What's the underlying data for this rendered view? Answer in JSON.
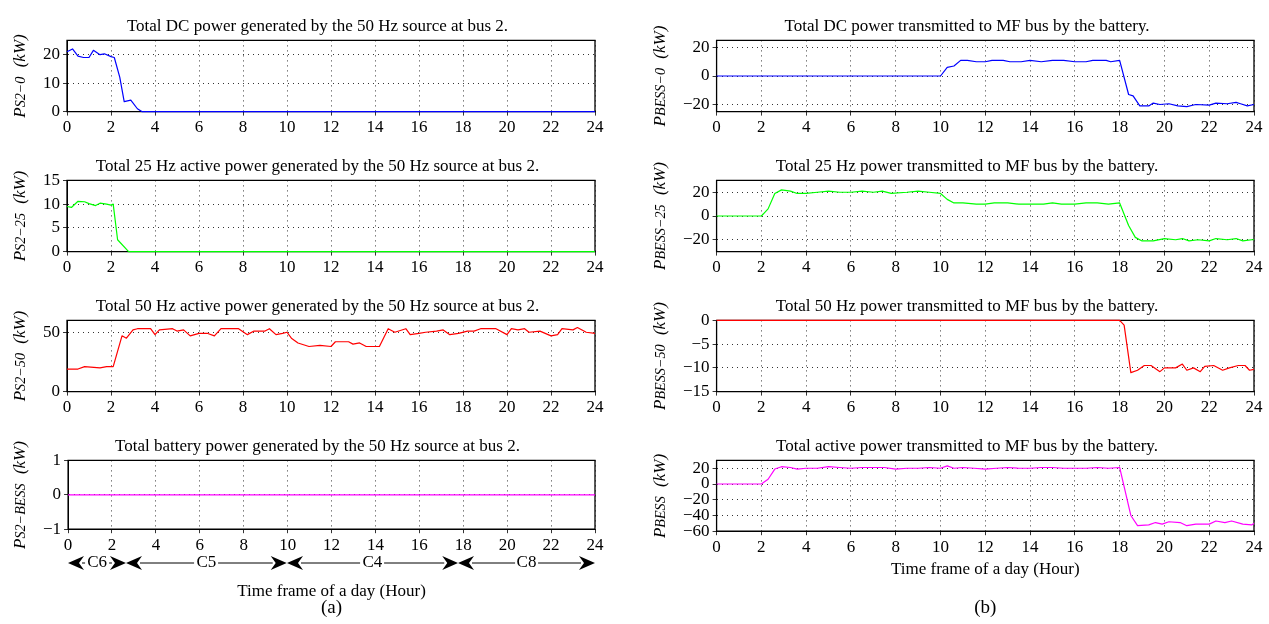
{
  "chart_data": [
    {
      "type": "line",
      "title": "Total DC power generated by the 50 Hz source at bus 2.",
      "ylabel": "P$_{S2−0}$ (kW)",
      "color": "#0000ff",
      "marker": "none",
      "grid": true,
      "xlim": [
        0,
        24
      ],
      "xticks": [
        0,
        2,
        4,
        6,
        8,
        10,
        12,
        14,
        16,
        18,
        20,
        22,
        24
      ],
      "ylim": [
        0,
        25
      ],
      "yticks": [
        0,
        10,
        20
      ],
      "x": [
        0,
        0.25,
        0.5,
        0.75,
        1.0,
        1.2,
        1.5,
        1.7,
        2.0,
        2.15,
        2.4,
        2.6,
        2.9,
        3.2,
        3.4,
        24
      ],
      "values": [
        21,
        22,
        19.5,
        19,
        19,
        21.5,
        20,
        20.3,
        19.3,
        19,
        12,
        3.5,
        4,
        1,
        0,
        0
      ]
    },
    {
      "type": "line",
      "title": "Total 25 Hz active power generated by the 50 Hz source at bus 2.",
      "ylabel": "P$_{S2−25}$ (kW)",
      "color": "#00ff00",
      "marker": "none",
      "grid": true,
      "xlim": [
        0,
        24
      ],
      "xticks": [
        0,
        2,
        4,
        6,
        8,
        10,
        12,
        14,
        16,
        18,
        20,
        22,
        24
      ],
      "ylim": [
        0,
        15
      ],
      "yticks": [
        0,
        5,
        10,
        15
      ],
      "x": [
        0,
        0.2,
        0.5,
        0.8,
        1.0,
        1.3,
        1.5,
        1.8,
        2.0,
        2.1,
        2.3,
        2.8,
        24
      ],
      "values": [
        9.5,
        9.3,
        10.6,
        10.5,
        10.1,
        9.7,
        10.2,
        10,
        9.8,
        10,
        2.5,
        0,
        0
      ]
    },
    {
      "type": "line",
      "title": "Total 50 Hz active power generated by the 50 Hz source at bus 2.",
      "ylabel": "P$_{S2−50}$ (kW)",
      "color": "#ff0000",
      "marker": "none",
      "grid": true,
      "xlim": [
        0,
        24
      ],
      "xticks": [
        0,
        2,
        4,
        6,
        8,
        10,
        12,
        14,
        16,
        18,
        20,
        22,
        24
      ],
      "ylim": [
        0,
        60
      ],
      "yticks": [
        0,
        50
      ],
      "x": [
        0,
        0.5,
        0.8,
        1.5,
        1.8,
        2.1,
        2.5,
        2.7,
        3.0,
        3.2,
        3.8,
        4.0,
        4.2,
        4.8,
        5.0,
        5.3,
        5.6,
        6.0,
        6.4,
        6.7,
        7.0,
        7.8,
        8.2,
        8.5,
        9.0,
        9.2,
        9.5,
        9.8,
        10.0,
        10.2,
        10.5,
        11.0,
        11.5,
        12.0,
        12.2,
        12.8,
        13.0,
        13.3,
        13.6,
        14.2,
        14.6,
        14.9,
        15.4,
        15.6,
        16.0,
        16.3,
        16.8,
        17.1,
        17.4,
        17.8,
        18.2,
        18.5,
        18.8,
        19.5,
        20.0,
        20.2,
        20.5,
        20.8,
        21.0,
        21.5,
        22.0,
        22.3,
        22.5,
        23.0,
        23.2,
        23.6,
        24
      ],
      "values": [
        19,
        19,
        21,
        20,
        21,
        21,
        47,
        45,
        52,
        53,
        53,
        48,
        52,
        53,
        51,
        52,
        47,
        49,
        49,
        47,
        53,
        53,
        48,
        51,
        51,
        53,
        48,
        49,
        50,
        45,
        41,
        38,
        39,
        38,
        42,
        42,
        40,
        41,
        38,
        38,
        53,
        50,
        53,
        48,
        49,
        50,
        51,
        52,
        48,
        49,
        51,
        51,
        53,
        53,
        48,
        53,
        52,
        53,
        50,
        51,
        47,
        48,
        53,
        52,
        54,
        50,
        49
      ]
    },
    {
      "type": "line",
      "title": "Total battery power generated by the 50 Hz source at bus 2.",
      "ylabel": "P$_{S2−BESS}$ (kW)",
      "xlabel": "Time frame of a day (Hour)",
      "color": "#ff00ff",
      "marker": "none",
      "grid": true,
      "xlim": [
        0,
        24
      ],
      "xticks": [
        0,
        2,
        4,
        6,
        8,
        10,
        12,
        14,
        16,
        18,
        20,
        22,
        24
      ],
      "ylim": [
        -1,
        1
      ],
      "yticks": [
        -1,
        0,
        1
      ],
      "x": [
        0,
        24
      ],
      "values": [
        0,
        0
      ],
      "annotations": [
        "C6",
        "C5",
        "C4",
        "C8",
        "(a)"
      ]
    },
    {
      "type": "line",
      "title": "Total DC power transmitted to MF bus by the battery.",
      "ylabel": "P$_{BESS−0}$ (kW)",
      "color": "#0000ff",
      "marker": "none",
      "grid": true,
      "xlim": [
        0,
        24
      ],
      "xticks": [
        0,
        2,
        4,
        6,
        8,
        10,
        12,
        14,
        16,
        18,
        20,
        22,
        24
      ],
      "ylim": [
        -25,
        25
      ],
      "yticks": [
        -20,
        0,
        20
      ],
      "x": [
        0,
        10,
        10.3,
        10.6,
        10.9,
        11.2,
        11.6,
        12,
        12.3,
        12.8,
        13.1,
        13.6,
        14,
        14.5,
        15,
        15.5,
        16,
        16.5,
        16.8,
        17.4,
        17.6,
        18,
        18.4,
        18.6,
        18.9,
        19.3,
        19.5,
        19.8,
        20.2,
        20.6,
        21,
        21.4,
        22,
        22.3,
        22.8,
        23.2,
        23.4,
        23.7,
        24
      ],
      "values": [
        0,
        0,
        6,
        7,
        11,
        11,
        10,
        10,
        11,
        11,
        10,
        10,
        11,
        10,
        11,
        11,
        10,
        10,
        11,
        11,
        10,
        11,
        -13,
        -14,
        -21,
        -21,
        -19,
        -20,
        -19.5,
        -21,
        -21.5,
        -20,
        -20.5,
        -19,
        -19.5,
        -18.5,
        -19.5,
        -21,
        -20
      ]
    },
    {
      "type": "line",
      "title": "Total 25 Hz power transmitted to MF bus by the battery.",
      "ylabel": "P$_{BESS−25}$ (kW)",
      "color": "#00ff00",
      "marker": "none",
      "grid": true,
      "xlim": [
        0,
        24
      ],
      "xticks": [
        0,
        2,
        4,
        6,
        8,
        10,
        12,
        14,
        16,
        18,
        20,
        22,
        24
      ],
      "ylim": [
        -30,
        30
      ],
      "yticks": [
        -20,
        0,
        20
      ],
      "x": [
        0,
        2,
        2.3,
        2.6,
        2.9,
        3.3,
        3.6,
        4,
        4.5,
        5,
        5.5,
        6,
        6.5,
        7,
        7.4,
        7.8,
        8.5,
        9,
        9.5,
        10,
        10.3,
        10.6,
        11,
        11.6,
        12,
        12.4,
        13,
        13.5,
        14,
        14.6,
        15,
        15.4,
        16,
        16.5,
        17,
        17.5,
        18,
        18.4,
        18.7,
        19,
        19.5,
        20,
        20.5,
        20.8,
        21.1,
        21.5,
        22,
        22.3,
        22.8,
        23.2,
        23.5,
        23.9,
        24
      ],
      "values": [
        0,
        0,
        6,
        19,
        22,
        21,
        19,
        19,
        20,
        21,
        20,
        20,
        21,
        20,
        21,
        19,
        20,
        21,
        20,
        19,
        14,
        11,
        11,
        10,
        10,
        11,
        11,
        10,
        10,
        10,
        11,
        10,
        10,
        11,
        11,
        10,
        11,
        -8,
        -18,
        -21,
        -21,
        -19,
        -20,
        -19,
        -21,
        -20,
        -21,
        -19,
        -20,
        -19,
        -21,
        -20,
        -20
      ]
    },
    {
      "type": "line",
      "title": "Total 50 Hz power transmitted to MF bus by the battery.",
      "ylabel": "P$_{BESS−50}$ (kW)",
      "color": "#ff0000",
      "marker": "none",
      "grid": true,
      "xlim": [
        0,
        24
      ],
      "xticks": [
        0,
        2,
        4,
        6,
        8,
        10,
        12,
        14,
        16,
        18,
        20,
        22,
        24
      ],
      "ylim": [
        -15,
        0
      ],
      "yticks": [
        -15,
        -10,
        -5,
        0
      ],
      "x": [
        0,
        18,
        18.2,
        18.5,
        18.8,
        19.1,
        19.4,
        19.8,
        20,
        20.5,
        20.8,
        21.0,
        21.3,
        21.6,
        21.8,
        22.2,
        22.6,
        22.9,
        23.3,
        23.6,
        23.8,
        24
      ],
      "values": [
        0,
        0,
        -1,
        -11,
        -10.5,
        -9.5,
        -9.5,
        -10.8,
        -10,
        -10,
        -9.2,
        -10.5,
        -10,
        -10.8,
        -9.7,
        -9.5,
        -10.5,
        -10,
        -9.5,
        -9.5,
        -10.5,
        -10.3
      ]
    },
    {
      "type": "line",
      "title": "Total active power transmitted to MF bus by the battery.",
      "ylabel": "P$_{BESS}$ (kW)",
      "xlabel": "Time frame of a day (Hour)",
      "color": "#ff00ff",
      "marker": "none",
      "grid": true,
      "xlim": [
        0,
        24
      ],
      "xticks": [
        0,
        2,
        4,
        6,
        8,
        10,
        12,
        14,
        16,
        18,
        20,
        22,
        24
      ],
      "ylim": [
        -60,
        30
      ],
      "yticks": [
        -60,
        -40,
        -20,
        0,
        20
      ],
      "x": [
        0,
        2,
        2.3,
        2.6,
        2.9,
        3.3,
        3.6,
        4,
        4.5,
        5,
        5.5,
        6,
        6.5,
        7,
        7.5,
        8,
        8.5,
        9,
        9.5,
        10,
        10.3,
        10.6,
        11,
        11.5,
        12,
        12.5,
        13,
        13.5,
        14,
        14.5,
        15,
        15.5,
        16,
        16.5,
        17,
        17.5,
        18,
        18.5,
        18.8,
        19.3,
        19.6,
        19.9,
        20.2,
        20.7,
        21,
        21.4,
        22,
        22.3,
        22.7,
        23,
        23.5,
        23.9,
        24
      ],
      "values": [
        0,
        0,
        6,
        19,
        22,
        21,
        19,
        20,
        20,
        22,
        21,
        20,
        21,
        21,
        21,
        19,
        20,
        20,
        21,
        20,
        23,
        20,
        21,
        20,
        19,
        20,
        21,
        20,
        20,
        21,
        21,
        20,
        20,
        20,
        21,
        20,
        21,
        -40,
        -53,
        -52,
        -49,
        -51,
        -48,
        -49,
        -53,
        -51,
        -51,
        -47,
        -49,
        -47,
        -51,
        -52,
        -50
      ],
      "annotations": [
        "(b)"
      ]
    }
  ]
}
